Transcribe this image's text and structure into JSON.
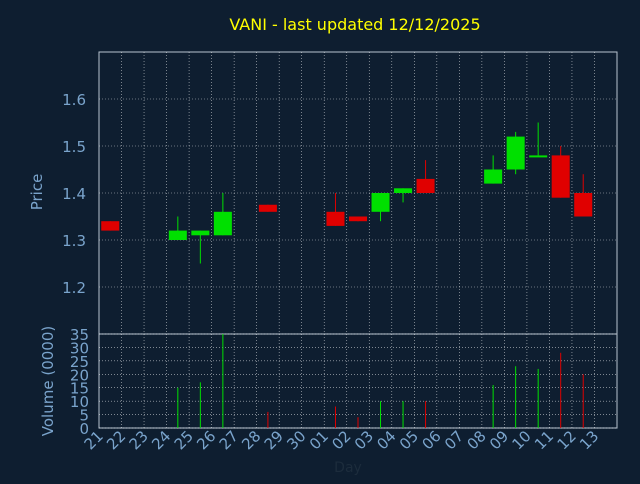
{
  "chart_data": [
    {
      "type": "candlestick",
      "title": "VANI - last updated 12/12/2025",
      "ylabel": "Price",
      "ylim": [
        1.1,
        1.7
      ],
      "yticks": [
        "1.2",
        "1.3",
        "1.4",
        "1.5",
        "1.6"
      ],
      "grid": true,
      "colors": {
        "up": "#00e000",
        "down": "#e00000",
        "title": "#ffff00",
        "axis_text": "#7aa4cc",
        "grid": "#ffffff",
        "background": "#0e1e30"
      },
      "candles": [
        {
          "x": "21",
          "open": 1.34,
          "high": 1.34,
          "low": 1.32,
          "close": 1.32
        },
        {
          "x": "24",
          "open": 1.3,
          "high": 1.35,
          "low": 1.3,
          "close": 1.32
        },
        {
          "x": "25",
          "open": 1.31,
          "high": 1.32,
          "low": 1.25,
          "close": 1.32
        },
        {
          "x": "26",
          "open": 1.31,
          "high": 1.4,
          "low": 1.31,
          "close": 1.36
        },
        {
          "x": "28",
          "open": 1.375,
          "high": 1.375,
          "low": 1.36,
          "close": 1.36
        },
        {
          "x": "01",
          "open": 1.36,
          "high": 1.4,
          "low": 1.33,
          "close": 1.33
        },
        {
          "x": "02",
          "open": 1.35,
          "high": 1.35,
          "low": 1.34,
          "close": 1.34
        },
        {
          "x": "03",
          "open": 1.36,
          "high": 1.4,
          "low": 1.34,
          "close": 1.4
        },
        {
          "x": "04",
          "open": 1.4,
          "high": 1.41,
          "low": 1.38,
          "close": 1.41
        },
        {
          "x": "05",
          "open": 1.43,
          "high": 1.47,
          "low": 1.4,
          "close": 1.4
        },
        {
          "x": "08",
          "open": 1.42,
          "high": 1.48,
          "low": 1.42,
          "close": 1.45
        },
        {
          "x": "09",
          "open": 1.45,
          "high": 1.53,
          "low": 1.44,
          "close": 1.52
        },
        {
          "x": "10",
          "open": 1.48,
          "high": 1.55,
          "low": 1.48,
          "close": 1.48
        },
        {
          "x": "11",
          "open": 1.48,
          "high": 1.5,
          "low": 1.39,
          "close": 1.39
        },
        {
          "x": "12",
          "open": 1.4,
          "high": 1.44,
          "low": 1.35,
          "close": 1.35
        }
      ]
    },
    {
      "type": "bar",
      "ylabel": "Volume (0000)",
      "xlabel": "Day",
      "ylim": [
        0,
        35
      ],
      "yticks": [
        "0",
        "5",
        "10",
        "15",
        "20",
        "25",
        "30",
        "35"
      ],
      "categories": [
        "21",
        "22",
        "23",
        "24",
        "25",
        "26",
        "27",
        "28",
        "29",
        "30",
        "01",
        "02",
        "03",
        "04",
        "05",
        "06",
        "07",
        "08",
        "09",
        "10",
        "11",
        "12",
        "13"
      ],
      "values": [
        {
          "x": "24",
          "value": 15,
          "dir": "up"
        },
        {
          "x": "25",
          "value": 17,
          "dir": "up"
        },
        {
          "x": "26",
          "value": 35,
          "dir": "up"
        },
        {
          "x": "28",
          "value": 6,
          "dir": "down"
        },
        {
          "x": "01",
          "value": 8,
          "dir": "down"
        },
        {
          "x": "02",
          "value": 4,
          "dir": "down"
        },
        {
          "x": "03",
          "value": 10,
          "dir": "up"
        },
        {
          "x": "04",
          "value": 10,
          "dir": "up"
        },
        {
          "x": "05",
          "value": 10,
          "dir": "down"
        },
        {
          "x": "08",
          "value": 16,
          "dir": "up"
        },
        {
          "x": "09",
          "value": 23,
          "dir": "up"
        },
        {
          "x": "10",
          "value": 22,
          "dir": "up"
        },
        {
          "x": "11",
          "value": 28,
          "dir": "down"
        },
        {
          "x": "12",
          "value": 20,
          "dir": "down"
        }
      ]
    }
  ]
}
